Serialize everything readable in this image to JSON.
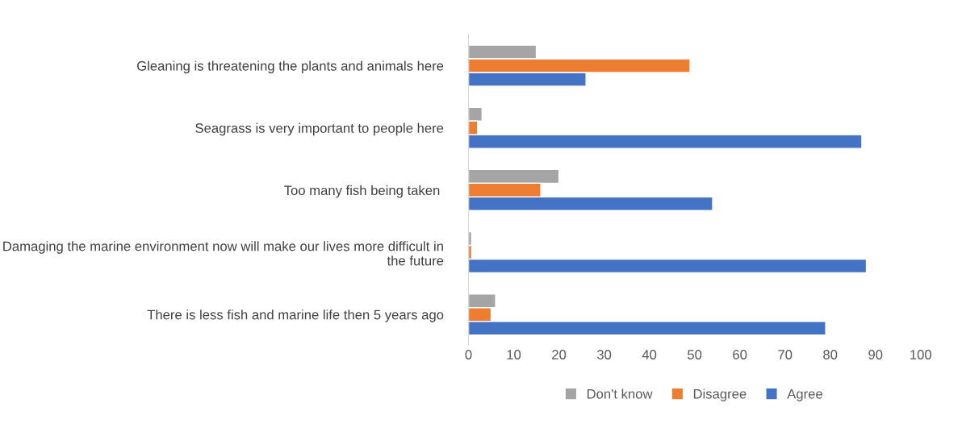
{
  "chart_data": {
    "type": "bar",
    "orientation": "horizontal",
    "categories": [
      "Gleaning is threatening the plants and animals here",
      "Seagrass is very important to people here",
      "Too many fish being taken ",
      "Damaging the marine environment now will make our lives more difficult in the future",
      "There is less fish and marine life then 5 years ago"
    ],
    "series": [
      {
        "name": "Don't know",
        "color": "#a5a5a5",
        "values": [
          15,
          3,
          20,
          0.7,
          6
        ]
      },
      {
        "name": "Disagree",
        "color": "#ed7d31",
        "values": [
          49,
          2,
          16,
          0.7,
          5
        ]
      },
      {
        "name": "Agree",
        "color": "#4472c4",
        "values": [
          26,
          87,
          54,
          88,
          79
        ]
      }
    ],
    "xlim": [
      0,
      100
    ],
    "xticks": [
      0,
      10,
      20,
      30,
      40,
      50,
      60,
      70,
      80,
      90,
      100
    ],
    "grid": false,
    "legend": "bottom"
  }
}
